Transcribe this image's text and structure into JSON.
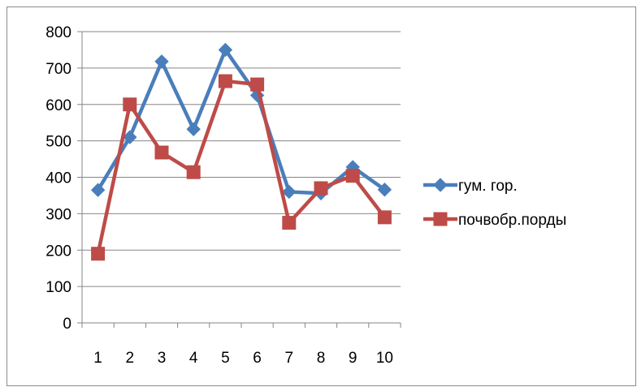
{
  "chart_data": {
    "type": "line",
    "title": "",
    "xlabel": "",
    "ylabel": "",
    "categories": [
      "1",
      "2",
      "3",
      "4",
      "5",
      "6",
      "7",
      "8",
      "9",
      "10"
    ],
    "ylim": [
      0,
      800
    ],
    "y_ticks": [
      "0",
      "100",
      "200",
      "300",
      "400",
      "500",
      "600",
      "700",
      "800"
    ],
    "grid": true,
    "legend_position": "right",
    "series": [
      {
        "name": "гум. гор.",
        "marker": "diamond",
        "color": "#4a7ebb",
        "values": [
          365,
          510,
          718,
          532,
          750,
          625,
          360,
          356,
          428,
          366
        ]
      },
      {
        "name": "почвобр.порды",
        "marker": "square",
        "color": "#be4b48",
        "values": [
          190,
          600,
          468,
          414,
          664,
          655,
          275,
          370,
          404,
          290
        ]
      }
    ]
  }
}
